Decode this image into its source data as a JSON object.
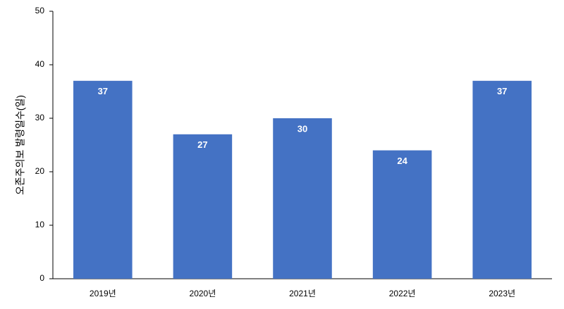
{
  "chart_data": {
    "type": "bar",
    "y_label": "오존주의보 발령일수(일)",
    "categories": [
      "2019년",
      "2020년",
      "2021년",
      "2022년",
      "2023년"
    ],
    "values": [
      37,
      27,
      30,
      24,
      37
    ],
    "color": "#4472c4",
    "ylim": [
      0,
      50
    ],
    "yticks": [
      0,
      10,
      20,
      30,
      40,
      50
    ],
    "grid": false
  }
}
